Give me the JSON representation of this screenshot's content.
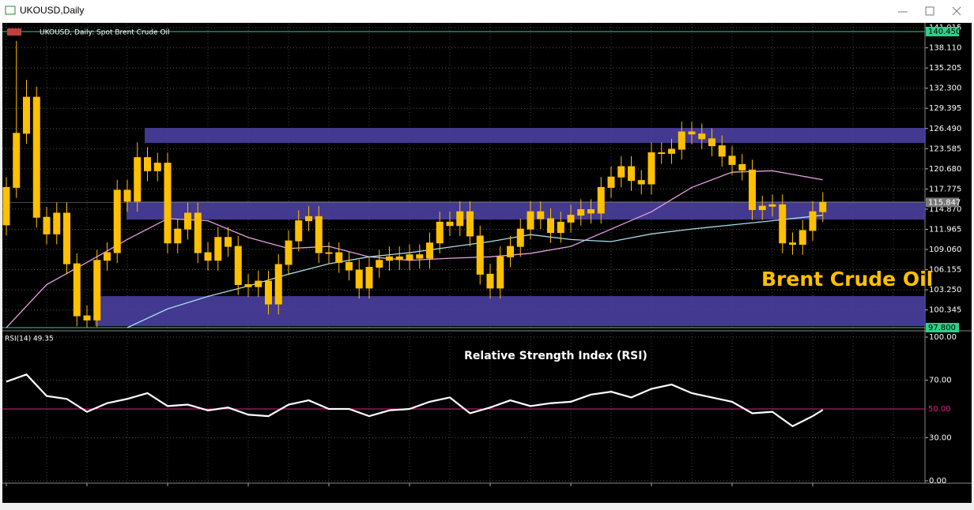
{
  "window": {
    "title": "UKOUSD,Daily"
  },
  "chart_data": [
    {
      "type": "candlestick",
      "title": "UKOUSD, Daily:  Spot Brent Crude Oil",
      "annotation": "Brent Crude Oil",
      "color": "#ffc000",
      "categories": [
        "4 Mar 2022",
        null,
        null,
        null,
        null,
        null,
        null,
        null,
        "16 Mar 2022",
        null,
        null,
        null,
        null,
        null,
        null,
        null,
        "28 Mar 2022",
        null,
        null,
        null,
        null,
        null,
        null,
        null,
        "7 Apr 2022",
        null,
        null,
        null,
        null,
        null,
        null,
        null,
        "20 Apr 2022",
        null,
        null,
        null,
        null,
        null,
        null,
        null,
        "2 May 2022",
        null,
        null,
        null,
        null,
        null,
        null,
        null,
        "12 May 2022",
        null,
        null,
        null,
        null,
        null,
        null,
        null,
        "24 May 2022",
        null,
        null,
        null,
        null,
        null,
        null,
        null,
        "3 Jun 2022",
        null,
        null,
        null,
        null,
        null,
        null,
        null,
        "15 Jun 2022",
        null,
        null,
        null,
        null,
        null,
        null,
        null,
        "27 Jun 2022",
        null
      ],
      "open": [
        112.6,
        118,
        125.8,
        131,
        113.7,
        111.3,
        114.3,
        107,
        99.5,
        98.9,
        107.5,
        108.6,
        117.6,
        116,
        122.3,
        120.4,
        121.5,
        110,
        112,
        114.3,
        108.6,
        107.5,
        110.8,
        109.5,
        104,
        103.7,
        104.5,
        101.2,
        106.9,
        110.3,
        113.2,
        113.8,
        108.6,
        108.6,
        107.2,
        106.1,
        103.5,
        106.5,
        107.5,
        108,
        107.6,
        108.3,
        107.8,
        110,
        113,
        112.5,
        114.5,
        111,
        105.5,
        103.5,
        108,
        109.5,
        112,
        114.5,
        113.5,
        111.5,
        113,
        114,
        114.8,
        114.3,
        118,
        119.5,
        121,
        119,
        118.5,
        123,
        122.9,
        123.5,
        126,
        125.7,
        125,
        124,
        122.5,
        121.3,
        120.5,
        114.8,
        115.3,
        115.5,
        110,
        109.8,
        111.8,
        114.5
      ],
      "high": [
        119.5,
        139.1,
        133.5,
        132.5,
        115.2,
        115.8,
        115.8,
        108.5,
        101,
        109,
        110.1,
        119.1,
        119.1,
        124.5,
        123.8,
        123,
        123,
        113.5,
        115.8,
        115.8,
        110.1,
        112.3,
        112.3,
        111,
        105.5,
        106,
        106,
        108.4,
        111.8,
        114.7,
        115.3,
        115.3,
        110.1,
        110.1,
        108.7,
        107.6,
        108,
        109,
        109.5,
        109.5,
        109.8,
        109.8,
        111.5,
        114.5,
        114.5,
        116,
        116,
        112.5,
        107,
        109.5,
        111,
        113.5,
        116,
        116,
        115,
        114.5,
        115.5,
        116.3,
        116.3,
        119.5,
        121,
        122.5,
        122.5,
        120.5,
        124.5,
        124.5,
        125,
        127.5,
        127.5,
        127.2,
        126.5,
        125.5,
        124,
        122.8,
        122,
        116.8,
        117,
        117,
        111.5,
        113.3,
        116,
        117.3
      ],
      "low": [
        111.1,
        116.5,
        124.3,
        112.2,
        109.8,
        109.8,
        105.5,
        98,
        97.8,
        97.9,
        106,
        107.1,
        114.5,
        114.5,
        118.9,
        118.9,
        108.5,
        108.5,
        110.5,
        107.1,
        106,
        106,
        108,
        102.5,
        102.2,
        102.2,
        99.7,
        99.7,
        105.4,
        108.8,
        111.7,
        107.1,
        107.1,
        105.7,
        104.6,
        102,
        102,
        105,
        106,
        106.1,
        106.1,
        106.3,
        106.3,
        108.5,
        111,
        111,
        109.5,
        104,
        102,
        102,
        106.5,
        108,
        110.5,
        112,
        110,
        110,
        111.5,
        112.5,
        112.8,
        112.8,
        116.5,
        118,
        117.5,
        117,
        117,
        121.4,
        121.4,
        122,
        124.2,
        123.5,
        122.5,
        121,
        119.8,
        119,
        113.3,
        113.3,
        113.8,
        108.5,
        108.3,
        108.3,
        110.3,
        113
      ],
      "close": [
        118,
        125.8,
        131,
        113.7,
        111.3,
        114.3,
        107,
        99.5,
        98.9,
        107.5,
        108.6,
        117.6,
        116,
        122.3,
        120.4,
        121.5,
        110,
        112,
        114.3,
        108.6,
        107.5,
        110.8,
        109.5,
        104,
        103.7,
        104.5,
        101.2,
        106.9,
        110.3,
        113.2,
        113.8,
        108.6,
        108.6,
        107.2,
        106.1,
        103.5,
        106.5,
        107.5,
        108,
        107.6,
        108.3,
        107.8,
        110,
        113,
        112.5,
        114.5,
        111,
        105.5,
        103.5,
        108,
        109.5,
        112,
        114.5,
        113.5,
        111.5,
        113,
        114,
        114.8,
        114.3,
        118,
        119.5,
        121,
        119,
        118.5,
        123,
        122.9,
        123.5,
        126,
        125.7,
        125,
        124,
        122.5,
        121.3,
        120.5,
        114.8,
        115.3,
        115.5,
        110,
        109.8,
        111.8,
        114.5,
        115.847
      ],
      "series": [
        {
          "color": "#e6a0e0",
          "x": [
            0,
            4,
            8,
            12,
            16,
            20,
            24,
            28,
            32,
            36,
            40,
            44,
            48,
            52,
            56,
            60,
            64,
            68,
            72,
            76,
            81
          ],
          "values": [
            97.8,
            104,
            107.2,
            110.5,
            113.5,
            113.2,
            110.8,
            109.2,
            109.5,
            108,
            107.5,
            107.8,
            108,
            108.5,
            109.5,
            112,
            114.5,
            118,
            120.2,
            120.4,
            119.1
          ]
        },
        {
          "color": "#a8dce8",
          "x": [
            12,
            16,
            20,
            24,
            28,
            32,
            36,
            40,
            44,
            48,
            52,
            56,
            60,
            64,
            68,
            72,
            76,
            81
          ],
          "values": [
            97.8,
            100.5,
            102.3,
            103.8,
            105.5,
            107,
            108,
            108.6,
            109.4,
            110.2,
            111.2,
            110.5,
            110.2,
            111.3,
            112,
            112.6,
            113.2,
            114
          ]
        }
      ],
      "ylim": [
        97.46,
        141.59
      ],
      "yticks": [
        {
          "value": 141.015,
          "label": "141.015"
        },
        {
          "value": 138.11,
          "label": "138.110"
        },
        {
          "value": 135.205,
          "label": "135.205"
        },
        {
          "value": 132.3,
          "label": "132.300"
        },
        {
          "value": 129.395,
          "label": "129.395"
        },
        {
          "value": 126.49,
          "label": "126.490"
        },
        {
          "value": 123.585,
          "label": "123.585"
        },
        {
          "value": 120.68,
          "label": "120.680"
        },
        {
          "value": 117.775,
          "label": "117.775"
        },
        {
          "value": 114.87,
          "label": "114.870"
        },
        {
          "value": 111.965,
          "label": "111.965"
        },
        {
          "value": 109.06,
          "label": "109.060"
        },
        {
          "value": 106.155,
          "label": "106.155"
        },
        {
          "value": 103.25,
          "label": "103.250"
        },
        {
          "value": 100.345,
          "label": "100.345"
        }
      ],
      "levels": [
        {
          "value": 140.45,
          "label": "140.450"
        },
        {
          "value": 97.8,
          "label": "97.800"
        }
      ],
      "current": {
        "value": 115.847,
        "label": "115.847"
      },
      "zones": [
        [
          124.41,
          126.57
        ],
        [
          113.37,
          115.99
        ],
        [
          98.02,
          102.34
        ]
      ],
      "grid": true
    },
    {
      "type": "line",
      "label": "RSI(14) 49.35",
      "title": "Relative Strength Index (RSI)",
      "color": "#ffffff",
      "x": [
        0,
        2,
        4,
        6,
        8,
        10,
        12,
        14,
        16,
        18,
        20,
        22,
        24,
        26,
        28,
        30,
        32,
        34,
        36,
        38,
        40,
        42,
        44,
        46,
        48,
        50,
        52,
        54,
        56,
        58,
        60,
        62,
        64,
        66,
        68,
        70,
        72,
        74,
        76,
        78,
        80,
        81
      ],
      "values": [
        69,
        74,
        59,
        57,
        48,
        54,
        57,
        61,
        52,
        53,
        49,
        51,
        46,
        45,
        53,
        56,
        50,
        50,
        45,
        49,
        50,
        55,
        58,
        47,
        51,
        56,
        52,
        54,
        55,
        60,
        62,
        58,
        64,
        67,
        61,
        58,
        55,
        47,
        48,
        38,
        45,
        49.35
      ],
      "ylim": [
        0,
        100
      ],
      "yticks": [
        {
          "value": 100,
          "label": "100.00"
        },
        {
          "value": 70,
          "label": "70.00"
        },
        {
          "value": 30,
          "label": "30.00"
        },
        {
          "value": 0,
          "label": "0.00"
        }
      ],
      "level": {
        "value": 50,
        "label": "50.00"
      },
      "grid": true
    }
  ]
}
